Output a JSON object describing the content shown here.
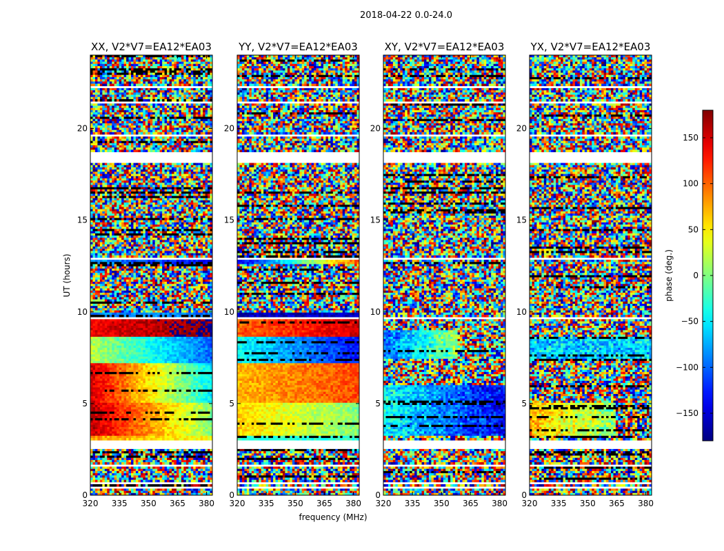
{
  "chart_data": {
    "type": "heatmap",
    "suptitle": "2018-04-22 0.0-24.0",
    "xlabel": "frequency (MHz)",
    "ylabel": "UT (hours)",
    "xlim": [
      320,
      383
    ],
    "ylim": [
      0,
      24
    ],
    "xticks": [
      320,
      335,
      350,
      365,
      380
    ],
    "yticks": [
      0,
      5,
      10,
      15,
      20
    ],
    "colorbar": {
      "label": "phase (deg.)",
      "range": [
        -180,
        180
      ],
      "ticks": [
        150,
        100,
        50,
        0,
        -50,
        -100,
        -150
      ],
      "tick_labels": [
        "150",
        "100",
        "50",
        "0",
        "−50",
        "−100",
        "−150"
      ],
      "colormap": "jet"
    },
    "panels": [
      {
        "title": "XX, V2*V7=EA12*EA03",
        "pol": "XX"
      },
      {
        "title": "YY, V2*V7=EA12*EA03",
        "pol": "YY"
      },
      {
        "title": "XY, V2*V7=EA12*EA03",
        "pol": "XY"
      },
      {
        "title": "YX, V2*V7=EA12*EA03",
        "pol": "YX"
      }
    ],
    "flagged_hour_ranges": [
      [
        0.3,
        0.45
      ],
      [
        0.6,
        0.75
      ],
      [
        1.05,
        1.12
      ],
      [
        1.6,
        1.7
      ],
      [
        2.55,
        2.95
      ],
      [
        4.65,
        4.72
      ],
      [
        6.2,
        6.27
      ],
      [
        6.95,
        7.02
      ],
      [
        9.6,
        9.68
      ],
      [
        12.85,
        12.92
      ],
      [
        18.1,
        18.75
      ],
      [
        19.6,
        19.72
      ],
      [
        21.4,
        21.5
      ],
      [
        22.2,
        22.3
      ]
    ]
  }
}
